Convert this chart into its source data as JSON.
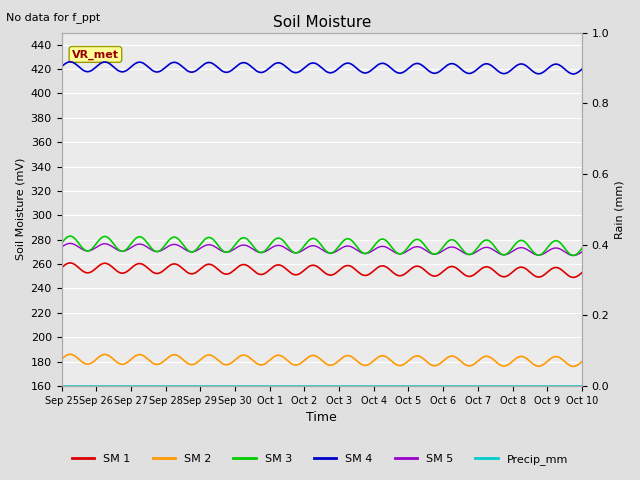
{
  "title": "Soil Moisture",
  "top_left_text": "No data for f_ppt",
  "xlabel": "Time",
  "ylabel_left": "Soil Moisture (mV)",
  "ylabel_right": "Rain (mm)",
  "ylim_left": [
    160,
    450
  ],
  "ylim_right": [
    0.0,
    1.0
  ],
  "yticks_left": [
    160,
    180,
    200,
    220,
    240,
    260,
    280,
    300,
    320,
    340,
    360,
    380,
    400,
    420,
    440
  ],
  "yticks_right": [
    0.0,
    0.2,
    0.4,
    0.6,
    0.8,
    1.0
  ],
  "xtick_labels": [
    "Sep 25",
    "Sep 26",
    "Sep 27",
    "Sep 28",
    "Sep 29",
    "Sep 30",
    "Oct 1",
    "Oct 2",
    "Oct 3",
    "Oct 4",
    "Oct 5",
    "Oct 6",
    "Oct 7",
    "Oct 8",
    "Oct 9",
    "Oct 10"
  ],
  "n_points": 1500,
  "sm1_base": 257,
  "sm1_amp": 4,
  "sm1_cycles": 15,
  "sm1_trend": -4,
  "sm1_color": "#dd0000",
  "sm2_base": 182,
  "sm2_amp": 4,
  "sm2_cycles": 15,
  "sm2_trend": -2,
  "sm2_color": "#ff9900",
  "sm3_base": 277,
  "sm3_amp": 6,
  "sm3_cycles": 15,
  "sm3_trend": -4,
  "sm3_color": "#00cc00",
  "sm4_base": 422,
  "sm4_amp": 4,
  "sm4_cycles": 15,
  "sm4_trend": -2,
  "sm4_color": "#0000cc",
  "sm5_base": 274,
  "sm5_amp": 3,
  "sm5_cycles": 15,
  "sm5_trend": -4,
  "sm5_color": "#9900cc",
  "precip_base": 160,
  "precip_color": "#00cccc",
  "vr_met_box_color": "#ffff99",
  "vr_met_text_color": "#990000",
  "vr_met_border_color": "#999900",
  "bg_color": "#e0e0e0",
  "plot_bg_color": "#ebebeb",
  "grid_color": "#ffffff",
  "legend_items": [
    {
      "label": "SM 1",
      "color": "#dd0000"
    },
    {
      "label": "SM 2",
      "color": "#ff9900"
    },
    {
      "label": "SM 3",
      "color": "#00cc00"
    },
    {
      "label": "SM 4",
      "color": "#0000cc"
    },
    {
      "label": "SM 5",
      "color": "#9900cc"
    },
    {
      "label": "Precip_mm",
      "color": "#00cccc"
    }
  ]
}
